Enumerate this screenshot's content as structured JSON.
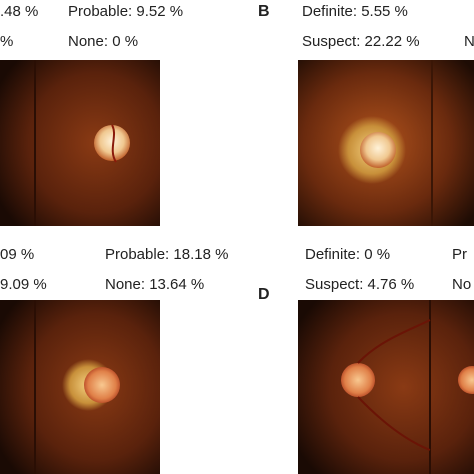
{
  "panels": [
    {
      "lines": [
        ".48 %",
        "Probable: 9.52 %",
        "%",
        "None: 0 %"
      ]
    },
    {
      "label": "B",
      "lines": [
        "Definite: 5.55 %",
        "Suspect: 22.22 %",
        "N"
      ]
    },
    {
      "lines": [
        "09 %",
        "Probable: 18.18 %",
        "9.09 %",
        "None: 13.64 %"
      ]
    },
    {
      "label": "D",
      "lines": [
        "Definite: 0 %",
        "Pr",
        "Suspect: 4.76 %",
        "No"
      ]
    }
  ]
}
